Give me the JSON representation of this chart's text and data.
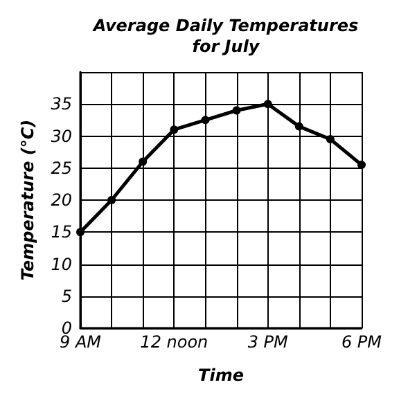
{
  "chart_data": {
    "type": "line",
    "title": "Average Daily Temperatures\nfor July",
    "xlabel": "Time",
    "ylabel": "Temperature (°C)",
    "categories": [
      "9 AM",
      null,
      null,
      "12 noon",
      null,
      null,
      "3 PM",
      null,
      null,
      "6 PM"
    ],
    "series": [
      {
        "color": "#000000",
        "values": [
          15,
          20,
          26,
          31,
          32.5,
          34,
          35,
          31.5,
          29.5,
          25.5
        ]
      }
    ],
    "ylim": [
      0,
      40
    ],
    "yticks": [
      0,
      5,
      10,
      15,
      20,
      25,
      30,
      35,
      {
        "value": 40,
        "label": null
      }
    ],
    "grid": true,
    "marker": "circle",
    "line_style": "solid"
  }
}
